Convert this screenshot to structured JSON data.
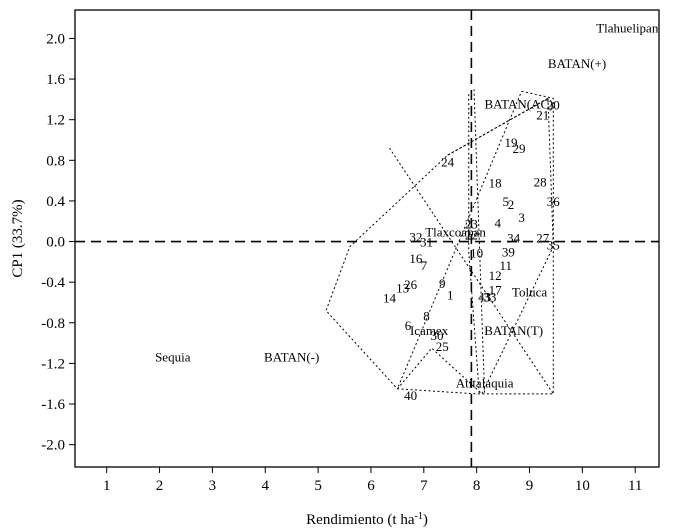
{
  "chart_data": {
    "type": "scatter",
    "title": "",
    "xlabel": "Rendimiento (t ha",
    "xlabel_sup": "-1",
    "xlabel_end": ")",
    "ylabel": "CP1 (33.7%)",
    "xlim": [
      0.4,
      11.45
    ],
    "ylim": [
      -2.22,
      2.28
    ],
    "x_ticks": [
      1,
      2,
      3,
      4,
      5,
      6,
      7,
      8,
      9,
      10,
      11
    ],
    "y_ticks": [
      2.0,
      1.6,
      1.2,
      0.8,
      0.4,
      0.0,
      -0.4,
      -0.8,
      -1.2,
      -1.6,
      -2.0
    ],
    "y_tick_labels": [
      "2.0",
      "1.6",
      "1.2",
      "0.8",
      "0.4",
      "0.0",
      "-0.4",
      "-0.8",
      "-1.2",
      "-1.6",
      "-2.0"
    ],
    "reference_lines": {
      "x": 7.9,
      "y": 0.0
    },
    "environments": [
      {
        "label": "Tlahuelipan",
        "x": 10.85,
        "y": 2.1
      },
      {
        "label": "BATAN(+)",
        "x": 9.9,
        "y": 1.75
      },
      {
        "label": "BATAN(AC)",
        "x": 8.8,
        "y": 1.35
      },
      {
        "label": "Tlaxcoapan",
        "x": 7.6,
        "y": 0.09
      },
      {
        "label": "Toluca",
        "x": 9.0,
        "y": -0.5
      },
      {
        "label": "BATAN(T)",
        "x": 8.7,
        "y": -0.88
      },
      {
        "label": "Icamex",
        "x": 7.1,
        "y": -0.88
      },
      {
        "label": "Atitalaquia",
        "x": 8.15,
        "y": -1.4
      },
      {
        "label": "Sequia",
        "x": 2.25,
        "y": -1.14
      },
      {
        "label": "BATAN(-)",
        "x": 4.5,
        "y": -1.14
      }
    ],
    "genotypes": [
      {
        "label": "1",
        "x": 7.5,
        "y": -0.53
      },
      {
        "label": "2",
        "x": 8.65,
        "y": 0.36
      },
      {
        "label": "3",
        "x": 8.85,
        "y": 0.23
      },
      {
        "label": "4",
        "x": 8.4,
        "y": 0.18
      },
      {
        "label": "5",
        "x": 8.55,
        "y": 0.39
      },
      {
        "label": "6",
        "x": 6.7,
        "y": -0.83
      },
      {
        "label": "7",
        "x": 7.0,
        "y": -0.24
      },
      {
        "label": "8",
        "x": 7.05,
        "y": -0.74
      },
      {
        "label": "9",
        "x": 7.35,
        "y": -0.42
      },
      {
        "label": "10",
        "x": 8.0,
        "y": -0.12
      },
      {
        "label": "11",
        "x": 8.55,
        "y": -0.24
      },
      {
        "label": "12",
        "x": 8.35,
        "y": -0.34
      },
      {
        "label": "13",
        "x": 6.6,
        "y": -0.46
      },
      {
        "label": "14",
        "x": 6.35,
        "y": -0.56
      },
      {
        "label": "16",
        "x": 6.85,
        "y": -0.17
      },
      {
        "label": "17",
        "x": 8.35,
        "y": -0.48
      },
      {
        "label": "18",
        "x": 8.35,
        "y": 0.57
      },
      {
        "label": "19",
        "x": 8.65,
        "y": 0.97
      },
      {
        "label": "20",
        "x": 9.45,
        "y": 1.34
      },
      {
        "label": "21",
        "x": 9.25,
        "y": 1.24
      },
      {
        "label": "22",
        "x": 7.9,
        "y": 0.06
      },
      {
        "label": "23",
        "x": 7.9,
        "y": 0.17
      },
      {
        "label": "24",
        "x": 7.45,
        "y": 0.78
      },
      {
        "label": "25",
        "x": 7.35,
        "y": -1.04
      },
      {
        "label": "26",
        "x": 6.75,
        "y": -0.43
      },
      {
        "label": "27",
        "x": 9.25,
        "y": 0.03
      },
      {
        "label": "28",
        "x": 9.2,
        "y": 0.58
      },
      {
        "label": "29",
        "x": 8.8,
        "y": 0.91
      },
      {
        "label": "30",
        "x": 7.25,
        "y": -0.93
      },
      {
        "label": "31",
        "x": 7.05,
        "y": -0.01
      },
      {
        "label": "32",
        "x": 6.85,
        "y": 0.04
      },
      {
        "label": "33",
        "x": 8.25,
        "y": -0.55
      },
      {
        "label": "34",
        "x": 8.7,
        "y": 0.03
      },
      {
        "label": "35",
        "x": 9.45,
        "y": -0.04
      },
      {
        "label": "36",
        "x": 9.45,
        "y": 0.39
      },
      {
        "label": "39",
        "x": 8.6,
        "y": -0.11
      },
      {
        "label": "40",
        "x": 6.75,
        "y": -1.52
      },
      {
        "label": "43",
        "x": 8.15,
        "y": -0.55
      }
    ],
    "hulls": [
      [
        [
          9.35,
          1.41
        ],
        [
          9.45,
          -0.05
        ],
        [
          9.45,
          -1.5
        ],
        [
          8.0,
          -1.5
        ],
        [
          6.5,
          -1.45
        ],
        [
          5.15,
          -0.68
        ],
        [
          5.6,
          -0.05
        ],
        [
          7.45,
          0.85
        ],
        [
          9.35,
          1.41
        ]
      ],
      [
        [
          8.85,
          1.48
        ],
        [
          9.45,
          1.41
        ],
        [
          9.45,
          -0.05
        ],
        [
          8.1,
          -1.5
        ],
        [
          7.15,
          -1.05
        ],
        [
          6.5,
          -1.45
        ],
        [
          8.85,
          1.48
        ]
      ],
      [
        [
          6.35,
          0.92
        ],
        [
          9.45,
          -1.5
        ]
      ],
      [
        [
          7.85,
          1.45
        ],
        [
          7.85,
          -0.1
        ],
        [
          8.05,
          -1.5
        ]
      ],
      [
        [
          7.95,
          1.5
        ],
        [
          8.15,
          -1.5
        ]
      ],
      [
        [
          7.45,
          0.85
        ],
        [
          9.35,
          1.41
        ]
      ]
    ]
  }
}
